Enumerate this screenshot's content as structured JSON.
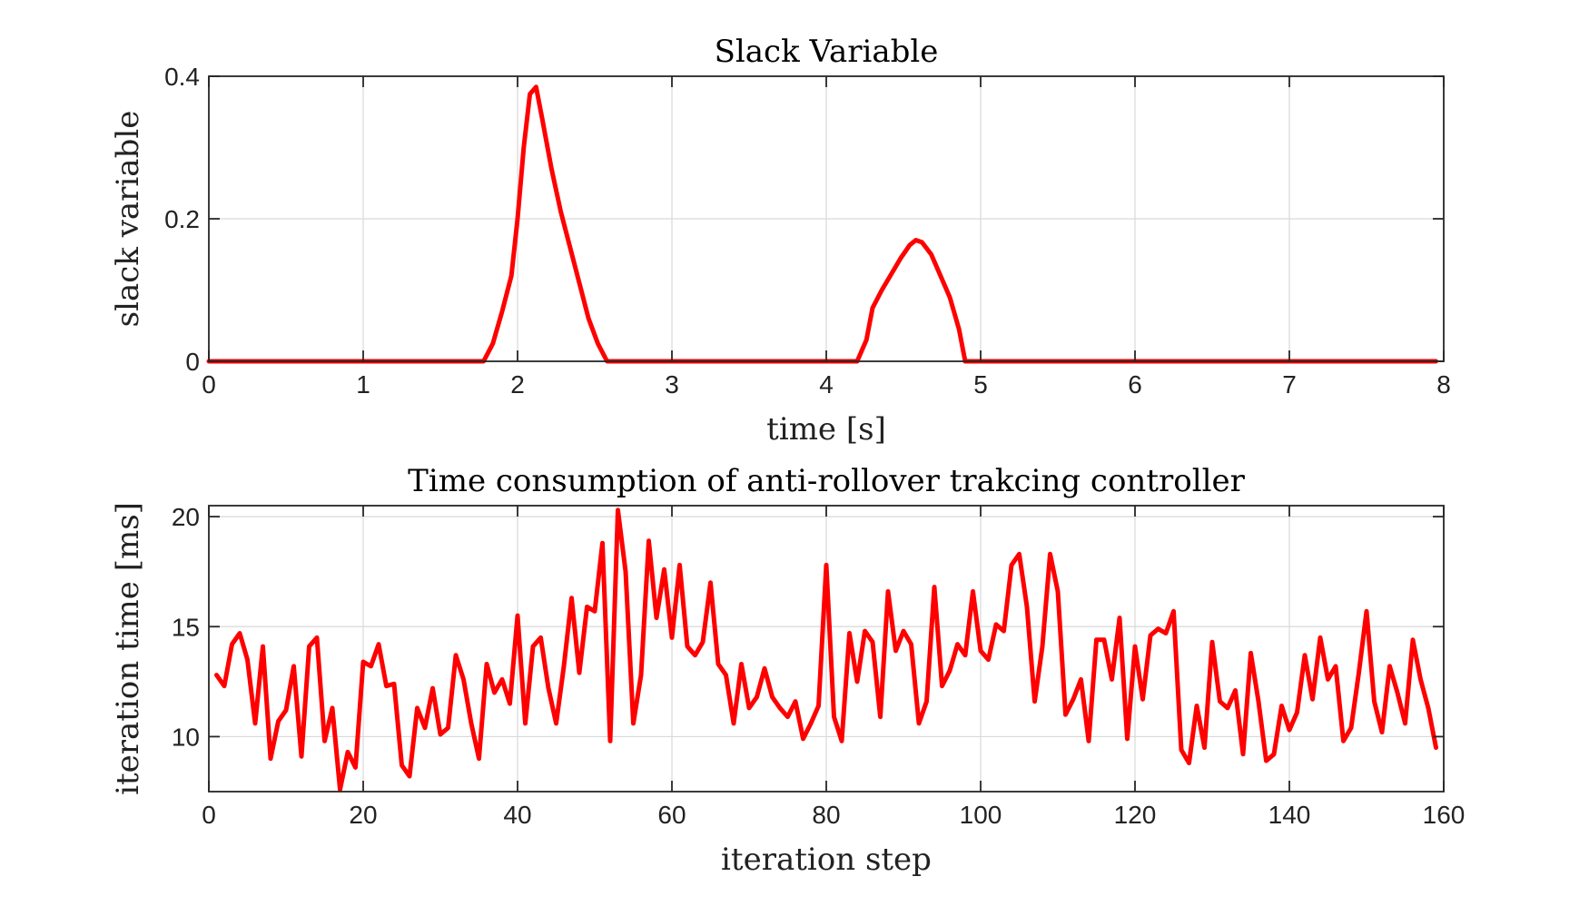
{
  "chart_data": [
    {
      "type": "line",
      "title": "Slack Variable",
      "xlabel": "time [s]",
      "ylabel": "slack variable",
      "xlim": [
        0,
        8
      ],
      "ylim": [
        0,
        0.4
      ],
      "xticks": [
        0,
        1,
        2,
        3,
        4,
        5,
        6,
        7,
        8
      ],
      "yticks": [
        0,
        0.2,
        0.4
      ],
      "xtick_labels": [
        "0",
        "1",
        "2",
        "3",
        "4",
        "5",
        "6",
        "7",
        "8"
      ],
      "ytick_labels": [
        "0",
        "0.2",
        "0.4"
      ],
      "grid": true,
      "color": "#ff0000",
      "series": [
        {
          "x": [
            0,
            1.78,
            1.84,
            1.9,
            1.96,
            2.0,
            2.04,
            2.08,
            2.12,
            2.16,
            2.22,
            2.28,
            2.34,
            2.4,
            2.46,
            2.52,
            2.58,
            4.2,
            4.26,
            4.3,
            4.36,
            4.42,
            4.48,
            4.54,
            4.58,
            4.62,
            4.68,
            4.74,
            4.8,
            4.86,
            4.9,
            7.95
          ],
          "y": [
            0,
            0,
            0.025,
            0.07,
            0.12,
            0.2,
            0.3,
            0.375,
            0.385,
            0.34,
            0.27,
            0.21,
            0.16,
            0.11,
            0.06,
            0.025,
            0,
            0,
            0.03,
            0.075,
            0.1,
            0.122,
            0.144,
            0.163,
            0.17,
            0.167,
            0.15,
            0.12,
            0.09,
            0.045,
            0,
            0
          ]
        }
      ]
    },
    {
      "type": "line",
      "title": "Time consumption of anti-rollover trakcing controller",
      "xlabel": "iteration step",
      "ylabel": "iteration time [ms]",
      "xlim": [
        0,
        160
      ],
      "ylim": [
        7.5,
        20.5
      ],
      "xticks": [
        0,
        20,
        40,
        60,
        80,
        100,
        120,
        140,
        160
      ],
      "yticks": [
        10,
        15,
        20
      ],
      "xtick_labels": [
        "0",
        "20",
        "40",
        "60",
        "80",
        "100",
        "120",
        "140",
        "160"
      ],
      "ytick_labels": [
        "10",
        "15",
        "20"
      ],
      "grid": true,
      "color": "#ff0000",
      "series": [
        {
          "x": [
            1,
            2,
            3,
            4,
            5,
            6,
            7,
            8,
            9,
            10,
            11,
            12,
            13,
            14,
            15,
            16,
            17,
            18,
            19,
            20,
            21,
            22,
            23,
            24,
            25,
            26,
            27,
            28,
            29,
            30,
            31,
            32,
            33,
            34,
            35,
            36,
            37,
            38,
            39,
            40,
            41,
            42,
            43,
            44,
            45,
            46,
            47,
            48,
            49,
            50,
            51,
            52,
            53,
            54,
            55,
            56,
            57,
            58,
            59,
            60,
            61,
            62,
            63,
            64,
            65,
            66,
            67,
            68,
            69,
            70,
            71,
            72,
            73,
            74,
            75,
            76,
            77,
            78,
            79,
            80,
            81,
            82,
            83,
            84,
            85,
            86,
            87,
            88,
            89,
            90,
            91,
            92,
            93,
            94,
            95,
            96,
            97,
            98,
            99,
            100,
            101,
            102,
            103,
            104,
            105,
            106,
            107,
            108,
            109,
            110,
            111,
            112,
            113,
            114,
            115,
            116,
            117,
            118,
            119,
            120,
            121,
            122,
            123,
            124,
            125,
            126,
            127,
            128,
            129,
            130,
            131,
            132,
            133,
            134,
            135,
            136,
            137,
            138,
            139,
            140,
            141,
            142,
            143,
            144,
            145,
            146,
            147,
            148,
            149,
            150,
            151,
            152,
            153,
            154,
            155,
            156,
            157,
            158,
            159
          ],
          "y": [
            12.8,
            12.3,
            14.2,
            14.7,
            13.5,
            10.6,
            14.1,
            9.0,
            10.7,
            11.2,
            13.2,
            9.1,
            14.1,
            14.5,
            9.8,
            11.3,
            7.6,
            9.3,
            8.6,
            13.4,
            13.2,
            14.2,
            12.3,
            12.4,
            8.7,
            8.2,
            11.3,
            10.4,
            12.2,
            10.1,
            10.4,
            13.7,
            12.6,
            10.6,
            9.0,
            13.3,
            12.0,
            12.6,
            11.5,
            15.5,
            10.6,
            14.1,
            14.5,
            12.2,
            10.6,
            13.2,
            16.3,
            12.9,
            15.9,
            15.7,
            18.8,
            9.8,
            20.3,
            17.5,
            10.6,
            12.8,
            18.9,
            15.4,
            17.6,
            14.5,
            17.8,
            14.1,
            13.7,
            14.3,
            17.0,
            13.3,
            12.8,
            10.6,
            13.3,
            11.3,
            11.8,
            13.1,
            11.8,
            11.3,
            10.9,
            11.6,
            9.9,
            10.6,
            11.4,
            17.8,
            10.9,
            9.8,
            14.7,
            12.5,
            14.8,
            14.3,
            10.9,
            16.6,
            13.9,
            14.8,
            14.2,
            10.6,
            11.6,
            16.8,
            12.3,
            13.0,
            14.2,
            13.7,
            16.6,
            13.9,
            13.5,
            15.1,
            14.8,
            17.8,
            18.3,
            15.9,
            11.6,
            14.1,
            18.3,
            16.6,
            11.0,
            11.7,
            12.6,
            9.8,
            14.4,
            14.4,
            12.6,
            15.4,
            9.9,
            14.1,
            11.7,
            14.6,
            14.9,
            14.7,
            15.7,
            9.4,
            8.8,
            11.4,
            9.5,
            14.3,
            11.6,
            11.3,
            12.1,
            9.2,
            13.8,
            11.6,
            8.9,
            9.2,
            11.4,
            10.3,
            11.1,
            13.7,
            11.7,
            14.5,
            12.6,
            13.2,
            9.8,
            10.4,
            12.9,
            15.7,
            11.6,
            10.2,
            13.2,
            12.0,
            10.6,
            14.4,
            12.6,
            11.3,
            9.5
          ]
        }
      ]
    }
  ]
}
